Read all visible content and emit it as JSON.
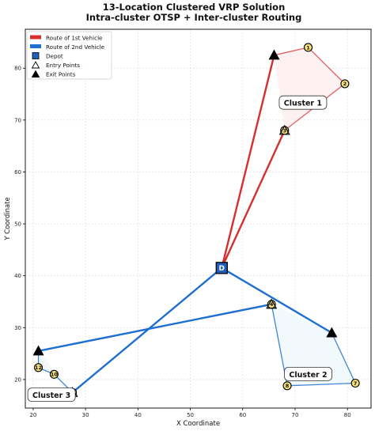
{
  "chart_data": {
    "type": "scatter",
    "title_line1": "13-Location Clustered VRP Solution",
    "title_line2": "Intra-cluster OTSP + Inter-cluster Routing",
    "xlabel": "X Coordinate",
    "ylabel": "Y Coordinate",
    "xlim": [
      18.5,
      84.5
    ],
    "ylim": [
      14.5,
      87.5
    ],
    "xticks": [
      20,
      30,
      40,
      50,
      60,
      70,
      80
    ],
    "yticks": [
      20,
      30,
      40,
      50,
      60,
      70,
      80
    ],
    "grid": true,
    "legend_placement": "top-left",
    "colors": {
      "vehicle1": "#d62f2f",
      "vehicle2": "#1f6fd1",
      "depot_fill": "#1f5fbf",
      "node_fill": "#f7e27a",
      "cluster1_fill": "#fdeeee",
      "cluster2_fill": "#eef7fb",
      "cluster3_fill": "#eef7fb"
    },
    "legend": {
      "vehicle1": "Route of 1st Vehicle",
      "vehicle2": "Route of 2nd Vehicle",
      "depot": "Depot",
      "entry": "Entry Points",
      "exit": "Exit Points"
    },
    "depot": {
      "x": 56,
      "y": 41.5,
      "label": "D"
    },
    "nodes": [
      {
        "id": "1",
        "x": 72.5,
        "y": 84
      },
      {
        "id": "2",
        "x": 79.5,
        "y": 77
      },
      {
        "id": "3",
        "x": 68,
        "y": 68
      },
      {
        "id": "4",
        "x": 65.5,
        "y": 34.5
      },
      {
        "id": "7",
        "x": 81.5,
        "y": 19.3
      },
      {
        "id": "8",
        "x": 68.5,
        "y": 18.8
      },
      {
        "id": "10",
        "x": 24,
        "y": 21
      },
      {
        "id": "11",
        "x": 27.5,
        "y": 17.5
      },
      {
        "id": "12",
        "x": 21,
        "y": 22.3
      }
    ],
    "entry_points": [
      {
        "x": 68,
        "y": 68
      },
      {
        "x": 65.5,
        "y": 34.5
      },
      {
        "x": 27.5,
        "y": 17.5
      }
    ],
    "exit_points": [
      {
        "x": 66,
        "y": 82.5
      },
      {
        "x": 77,
        "y": 29
      },
      {
        "x": 21,
        "y": 25.5
      }
    ],
    "clusters": [
      {
        "label": "Cluster 1",
        "x": 71.5,
        "y": 73.3,
        "polygon": [
          [
            66,
            82.5
          ],
          [
            72.5,
            84
          ],
          [
            79.5,
            77
          ],
          [
            68,
            68
          ]
        ]
      },
      {
        "label": "Cluster 2",
        "x": 72.5,
        "y": 21,
        "polygon": [
          [
            65.5,
            34.5
          ],
          [
            77,
            29
          ],
          [
            81.5,
            19.3
          ],
          [
            68.5,
            18.8
          ]
        ]
      },
      {
        "label": "Cluster 3",
        "x": 23.5,
        "y": 17,
        "polygon": [
          [
            21,
            25.5
          ],
          [
            21,
            22.3
          ],
          [
            24,
            21
          ],
          [
            27.5,
            17.5
          ]
        ]
      }
    ],
    "routes": [
      {
        "vehicle": 1,
        "inter": [
          [
            [
              56,
              41.5
            ],
            [
              68,
              68
            ]
          ],
          [
            [
              66,
              82.5
            ],
            [
              56,
              41.5
            ]
          ]
        ],
        "intra": [
          [
            68,
            68
          ],
          [
            79.5,
            77
          ],
          [
            72.5,
            84
          ],
          [
            66,
            82.5
          ]
        ]
      },
      {
        "vehicle": 2,
        "inter": [
          [
            [
              56,
              41.5
            ],
            [
              77,
              29
            ]
          ],
          [
            [
              65.5,
              34.5
            ],
            [
              21,
              25.5
            ]
          ],
          [
            [
              27.5,
              17.5
            ],
            [
              56,
              41.5
            ]
          ]
        ],
        "intra_a": [
          [
            77,
            29
          ],
          [
            81.5,
            19.3
          ],
          [
            68.5,
            18.8
          ],
          [
            65.5,
            34.5
          ]
        ],
        "intra_b": [
          [
            21,
            25.5
          ],
          [
            21,
            22.3
          ],
          [
            24,
            21
          ],
          [
            27.5,
            17.5
          ]
        ]
      }
    ]
  }
}
